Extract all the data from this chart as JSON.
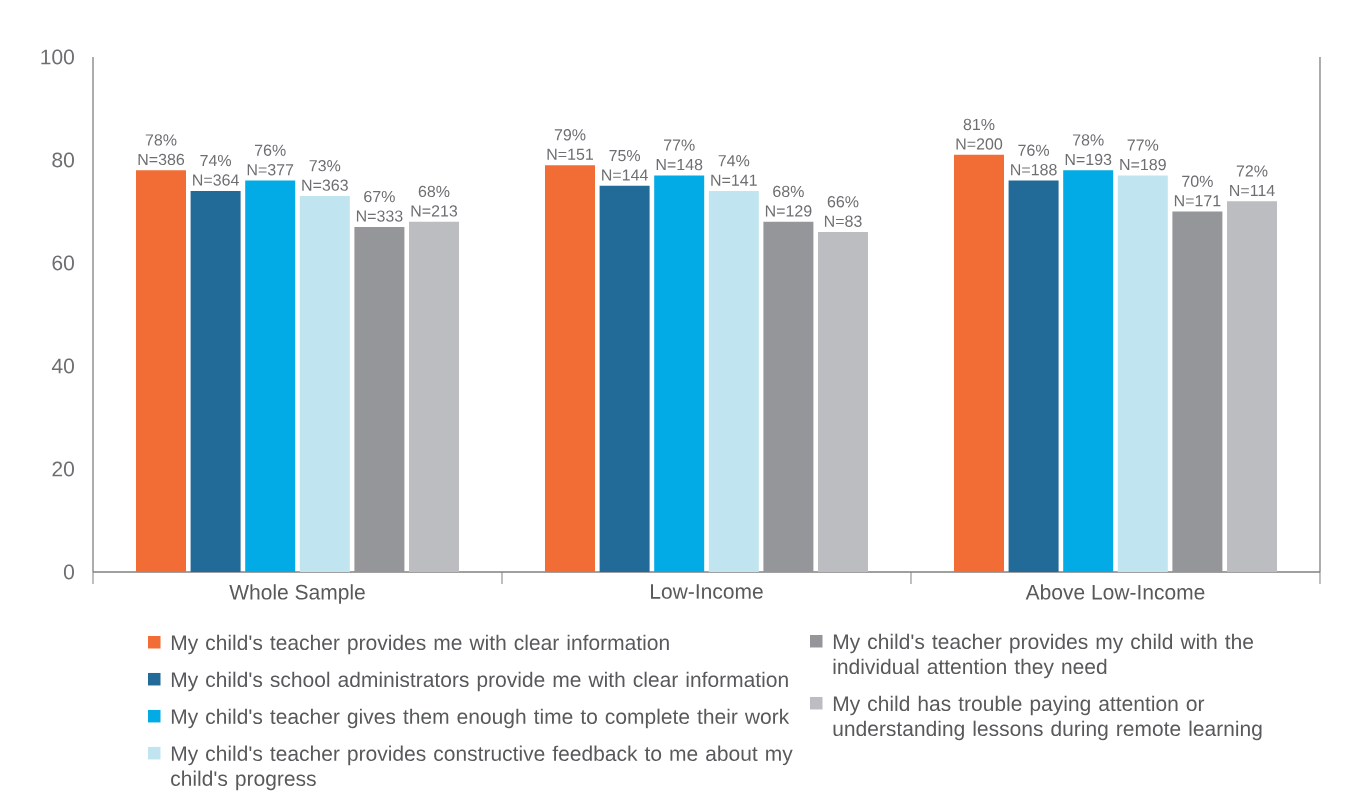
{
  "chart_data": {
    "type": "bar",
    "categories": [
      "Whole Sample",
      "Low-Income",
      "Above Low-Income"
    ],
    "series": [
      {
        "name": "My child's teacher provides me with clear information",
        "color": "#f26c35",
        "values": [
          78,
          79,
          81
        ],
        "value_labels": [
          "78% N=386",
          "79% N=151",
          "81% N=200"
        ]
      },
      {
        "name": "My child's school administrators provide me with clear information",
        "color": "#226a98",
        "values": [
          74,
          75,
          76
        ],
        "value_labels": [
          "74% N=364",
          "75% N=144",
          "76% N=188"
        ]
      },
      {
        "name": "My child's teacher gives them enough time to complete their work",
        "color": "#03abe6",
        "values": [
          76,
          77,
          78
        ],
        "value_labels": [
          "76% N=377",
          "77% N=148",
          "78% N=193"
        ]
      },
      {
        "name": "My child's teacher provides constructive feedback to me about my child's progress",
        "color": "#c0e5f0",
        "values": [
          73,
          74,
          77
        ],
        "value_labels": [
          "73% N=363",
          "74% N=141",
          "77% N=189"
        ]
      },
      {
        "name": "My child's teacher provides my child with the individual attention they need",
        "color": "#959699",
        "values": [
          67,
          68,
          70
        ],
        "value_labels": [
          "67% N=333",
          "68% N=129",
          "70% N=171"
        ]
      },
      {
        "name": "My child has trouble paying attention or understanding lessons during remote learning",
        "color": "#bcbdc1",
        "values": [
          68,
          66,
          72
        ],
        "value_labels": [
          "68% N=213",
          "66% N=83",
          "72% N=114"
        ]
      }
    ],
    "ylim": [
      0,
      100
    ],
    "yticks": [
      0,
      20,
      40,
      60,
      80,
      100
    ],
    "legend": "bottom"
  }
}
